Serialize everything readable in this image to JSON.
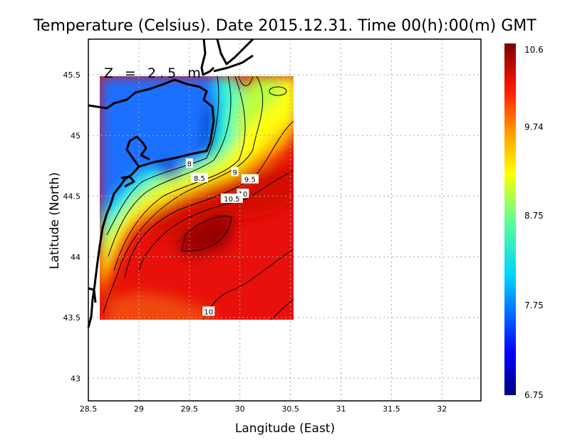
{
  "chart_data": {
    "type": "heatmap",
    "title": "Temperature (Celsius). Date 2015.12.31. Time 00(h):00(m)  GMT",
    "annotation": "Z = 2.5 m",
    "xlabel": "Langitude (East)",
    "ylabel": "Latitude (North)",
    "xlim": [
      28.5,
      32.4
    ],
    "ylim": [
      42.8,
      45.8
    ],
    "xticks": [
      "28.5",
      "29",
      "29.5",
      "30",
      "30.5",
      "31",
      "31.5",
      "32"
    ],
    "xtick_values": [
      28.5,
      29,
      29.5,
      30,
      30.5,
      31,
      31.5,
      32
    ],
    "yticks": [
      "43",
      "43.5",
      "44",
      "44.5",
      "45",
      "45.5"
    ],
    "ytick_values": [
      43,
      43.5,
      44,
      44.5,
      45,
      45.5
    ],
    "grid": true,
    "data_extent": {
      "lon": [
        28.62,
        30.53
      ],
      "lat": [
        43.49,
        45.5
      ]
    },
    "colorbar": {
      "range": [
        6.75,
        10.6
      ],
      "tick_labels": [
        "10.6",
        "9.74",
        "8.75",
        "7.75",
        "6.75"
      ],
      "tick_values": [
        10.6,
        9.74,
        8.75,
        7.75,
        6.75
      ],
      "placement": "right"
    },
    "contour_labels": [
      {
        "text": "8",
        "lon": 29.5,
        "lat": 44.77
      },
      {
        "text": "8.5",
        "lon": 29.6,
        "lat": 44.65
      },
      {
        "text": "9",
        "lon": 29.95,
        "lat": 44.7
      },
      {
        "text": "9.5",
        "lon": 30.1,
        "lat": 44.64
      },
      {
        "text": "10",
        "lon": 30.03,
        "lat": 44.52
      },
      {
        "text": "10.5",
        "lon": 29.92,
        "lat": 44.48
      },
      {
        "text": "10",
        "lon": 29.69,
        "lat": 43.55
      }
    ]
  }
}
